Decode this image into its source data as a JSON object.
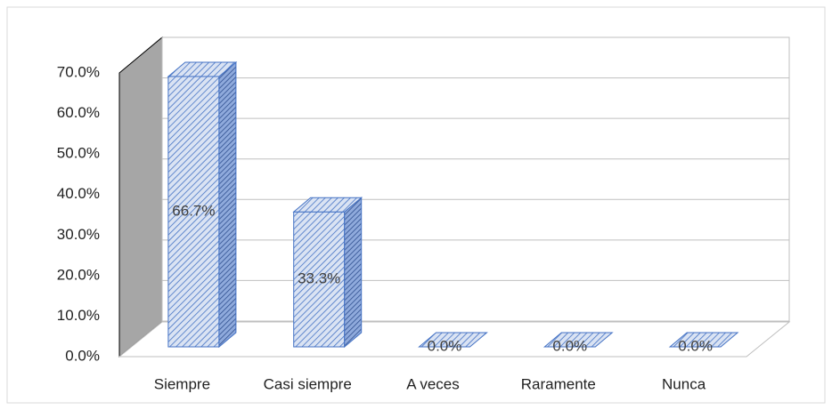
{
  "chart_data": {
    "type": "bar3d",
    "categories": [
      "Siempre",
      "Casi siempre",
      "A veces",
      "Raramente",
      "Nunca"
    ],
    "values": [
      66.7,
      33.3,
      0,
      0,
      0
    ],
    "value_labels": [
      "66.7%",
      "33.3%",
      "0.0%",
      "0.0%",
      "0.0%"
    ],
    "color": "#4472c4",
    "ylim": [
      0,
      70
    ],
    "yticks": [
      {
        "value": 0,
        "label": "0.0%"
      },
      {
        "value": 10,
        "label": "10.0%"
      },
      {
        "value": 20,
        "label": "20.0%"
      },
      {
        "value": 30,
        "label": "30.0%"
      },
      {
        "value": 40,
        "label": "40.0%"
      },
      {
        "value": 50,
        "label": "50.0%"
      },
      {
        "value": 60,
        "label": "60.0%"
      },
      {
        "value": 70,
        "label": "70.0%"
      }
    ],
    "grid": true
  }
}
